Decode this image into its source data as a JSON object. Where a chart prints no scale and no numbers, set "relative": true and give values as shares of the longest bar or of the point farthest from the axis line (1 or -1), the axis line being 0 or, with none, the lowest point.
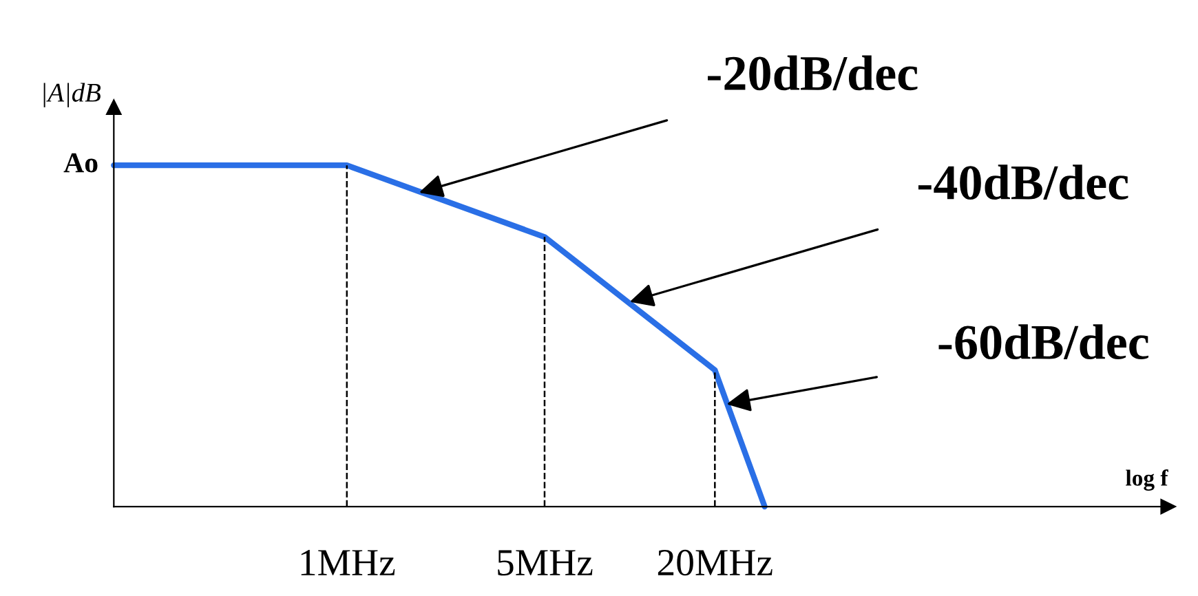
{
  "chart_data": {
    "type": "line",
    "relative": true,
    "ylabel": "|A|dB",
    "xlabel": "log f",
    "log": "x",
    "xlim": [
      0.15,
      800
    ],
    "xticks": [
      {
        "value": 1,
        "label": "1MHz"
      },
      {
        "value": 5,
        "label": "5MHz"
      },
      {
        "value": 20,
        "label": "20MHz"
      }
    ],
    "series": [
      {
        "color": "#2a6fe6",
        "x": [
          0.15,
          1,
          5,
          20,
          30
        ],
        "values": [
          1,
          1,
          0.79,
          0.4,
          0
        ]
      }
    ],
    "ref_lines": [
      {
        "axis": "x",
        "value": 1,
        "line_style": "dashed",
        "color": "#000000"
      },
      {
        "axis": "x",
        "value": 5,
        "line_style": "dashed",
        "color": "#000000"
      },
      {
        "axis": "x",
        "value": 20,
        "line_style": "dashed",
        "color": "#000000"
      }
    ],
    "annotations": [
      {
        "text": "Ao",
        "x": 0.15,
        "y": 1
      },
      {
        "text": "-20dB/dec",
        "x": 1.8,
        "y": 0.92
      },
      {
        "text": "-40dB/dec",
        "x": 10,
        "y": 0.6
      },
      {
        "text": "-60dB/dec",
        "x": 22,
        "y": 0.3
      }
    ],
    "marker": "none",
    "line_style": "solid",
    "grid": false,
    "legend": false,
    "tick_labels": "x"
  }
}
